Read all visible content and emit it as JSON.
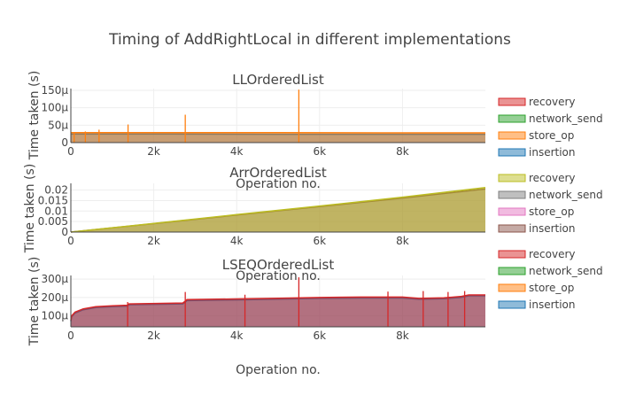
{
  "chart_data": {
    "title": "Timing of AddRightLocal in different implementations",
    "panels": [
      {
        "type": "area",
        "subtitle": "LLOrderedList",
        "xlabel": "Operation no.",
        "ylabel": "Time taken (s)",
        "xlim": [
          0,
          10000
        ],
        "ylim": [
          0,
          0.000155
        ],
        "xticks": [
          0,
          2000,
          4000,
          6000,
          8000
        ],
        "xtick_labels": [
          "0",
          "2k",
          "4k",
          "6k",
          "8k"
        ],
        "yticks": [
          0,
          5e-05,
          0.0001,
          0.00015
        ],
        "ytick_labels": [
          "0",
          "50μ",
          "100μ",
          "150μ"
        ],
        "series": [
          {
            "name": "recovery",
            "color": "#d62728",
            "x": [],
            "values": []
          },
          {
            "name": "network_send",
            "color": "#2ca02c",
            "x": [],
            "values": []
          },
          {
            "name": "store_op",
            "color": "#ff7f0e",
            "x": [
              0,
              2500,
              5000,
              7500,
              10000
            ],
            "values": [
              2.85e-05,
              2.85e-05,
              2.85e-05,
              2.8e-05,
              2.8e-05
            ]
          },
          {
            "name": "insertion",
            "color": "#1f77b4",
            "x": [
              0,
              2500,
              5000,
              7500,
              10000
            ],
            "values": [
              2.45e-05,
              2.45e-05,
              2.4e-05,
              2.4e-05,
              2.4e-05
            ]
          }
        ],
        "spikes": {
          "x": [
            80,
            350,
            680,
            1380,
            2760,
            5500
          ],
          "values": [
            3e-05,
            3.2e-05,
            3.7e-05,
            5.2e-05,
            8e-05,
            0.000152
          ]
        }
      },
      {
        "type": "area",
        "subtitle": "ArrOrderedList",
        "xlabel": "Operation no.",
        "ylabel": "Time taken (s)",
        "xlim": [
          0,
          10000
        ],
        "ylim": [
          0,
          0.0232
        ],
        "xticks": [
          0,
          2000,
          4000,
          6000,
          8000
        ],
        "xtick_labels": [
          "0",
          "2k",
          "4k",
          "6k",
          "8k"
        ],
        "yticks": [
          0,
          0.005,
          0.01,
          0.015,
          0.02
        ],
        "ytick_labels": [
          "0",
          "0.005",
          "0.01",
          "0.015",
          "0.02"
        ],
        "series": [
          {
            "name": "recovery",
            "color": "#bcbd22",
            "x": [
              0,
              2000,
              4000,
              6000,
              8000,
              10000
            ],
            "values": [
              0,
              0.0041,
              0.0083,
              0.0124,
              0.0166,
              0.0212
            ]
          },
          {
            "name": "network_send",
            "color": "#7f7f7f",
            "x": [],
            "values": []
          },
          {
            "name": "store_op",
            "color": "#e377c2",
            "x": [],
            "values": []
          },
          {
            "name": "insertion",
            "color": "#8c564b",
            "x": [
              0,
              2000,
              4000,
              6000,
              8000,
              10000
            ],
            "values": [
              0,
              0.004,
              0.0081,
              0.0121,
              0.0162,
              0.0205
            ]
          }
        ]
      },
      {
        "type": "area",
        "subtitle": "LSEQOrderedList",
        "xlabel": "Operation no.",
        "ylabel": "Time taken (s)",
        "xlim": [
          0,
          10000
        ],
        "ylim": [
          4e-05,
          0.00032
        ],
        "xticks": [
          0,
          2000,
          4000,
          6000,
          8000
        ],
        "xtick_labels": [
          "0",
          "2k",
          "4k",
          "6k",
          "8k"
        ],
        "yticks": [
          0.0001,
          0.0002,
          0.0003
        ],
        "ytick_labels": [
          "100μ",
          "200μ",
          "300μ"
        ],
        "series": [
          {
            "name": "recovery",
            "color": "#d62728",
            "x": [
              0,
              20,
              100,
              300,
              600,
              1000,
              1370,
              1400,
              2700,
              2760,
              2800,
              4000,
              5000,
              6000,
              7000,
              8000,
              8400,
              9000,
              9400,
              9600,
              10000
            ],
            "values": [
              7.5e-05,
              0.0001,
              0.00012,
              0.000138,
              0.00015,
              0.000155,
              0.000158,
              0.000165,
              0.00017,
              0.00018,
              0.000188,
              0.000192,
              0.000196,
              0.0002,
              0.000202,
              0.000202,
              0.000195,
              0.000198,
              0.000205,
              0.000214,
              0.000214
            ]
          },
          {
            "name": "network_send",
            "color": "#2ca02c",
            "x": [],
            "values": []
          },
          {
            "name": "store_op",
            "color": "#ff7f0e",
            "x": [],
            "values": []
          },
          {
            "name": "insertion",
            "color": "#1f77b4",
            "x": [
              0,
              20,
              100,
              300,
              600,
              1000,
              1370,
              1400,
              2700,
              2760,
              2800,
              4000,
              5000,
              6000,
              7000,
              8000,
              8400,
              9000,
              9400,
              9600,
              10000
            ],
            "values": [
              7e-05,
              9.5e-05,
              0.000115,
              0.000133,
              0.000145,
              0.00015,
              0.000153,
              0.00016,
              0.000165,
              0.000175,
              0.000183,
              0.000187,
              0.000191,
              0.000195,
              0.000197,
              0.000197,
              0.00019,
              0.000193,
              0.0002,
              0.000209,
              0.000209
            ]
          }
        ],
        "spikes": {
          "x": [
            1370,
            2760,
            4200,
            5500,
            7650,
            8500,
            9100,
            9500
          ],
          "values": [
            0.000175,
            0.00023,
            0.000215,
            0.00031,
            0.000232,
            0.000235,
            0.00023,
            0.000235
          ]
        }
      }
    ]
  }
}
